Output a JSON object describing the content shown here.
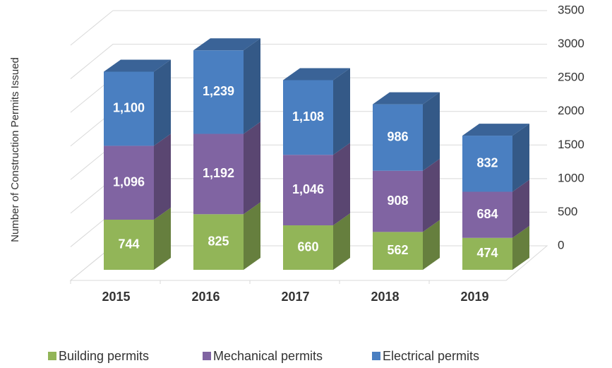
{
  "chart_data": {
    "type": "bar3d-stacked",
    "categories": [
      "2015",
      "2016",
      "2017",
      "2018",
      "2019"
    ],
    "series": [
      {
        "name": "Building permits",
        "color": "#92b558",
        "values": [
          744,
          825,
          660,
          562,
          474
        ]
      },
      {
        "name": "Mechanical permits",
        "color": "#8064a2",
        "values": [
          1096,
          1192,
          1046,
          908,
          684
        ],
        "value_labels": [
          "1,096",
          "1,192",
          "1,046",
          "908",
          "684"
        ]
      },
      {
        "name": "Electrical permits",
        "color": "#4a7fc1",
        "values": [
          1100,
          1239,
          1108,
          986,
          832
        ],
        "value_labels": [
          "1,100",
          "1,239",
          "1,108",
          "986",
          "832"
        ]
      }
    ],
    "y_axis_label": "Number of Construction Permits Issued",
    "ylim": [
      0,
      3500
    ],
    "yticks": [
      0,
      500,
      1000,
      1500,
      2000,
      2500,
      3000,
      3500
    ],
    "grid": true,
    "legend": "bottom"
  }
}
